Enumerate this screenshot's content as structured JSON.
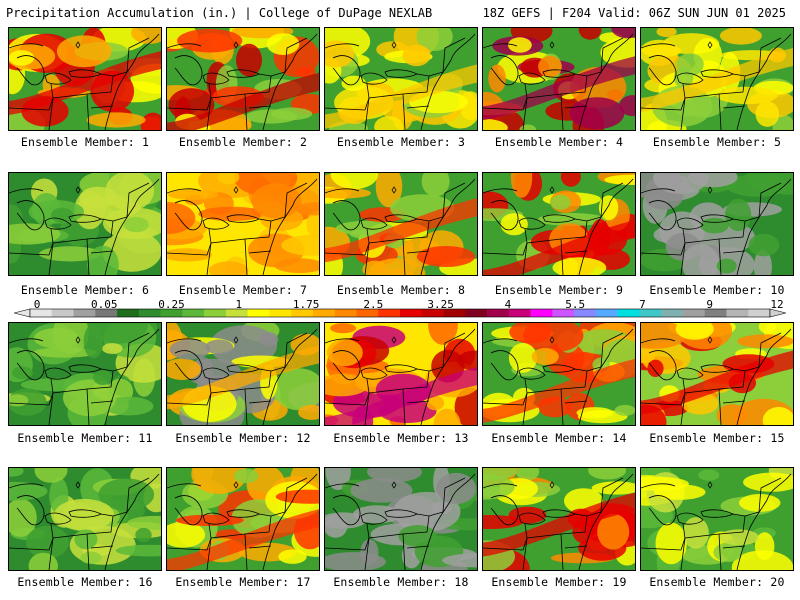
{
  "header": {
    "left_title": "Precipitation Accumulation (in.) | College of DuPage NEXLAB",
    "right_title": "18Z GEFS | F204 Valid: 06Z SUN JUN 01 2025"
  },
  "members": [
    {
      "label": "Ensemble Member: 1",
      "pattern": "south-heavy"
    },
    {
      "label": "Ensemble Member: 2",
      "pattern": "band-heavy"
    },
    {
      "label": "Ensemble Member: 3",
      "pattern": "moderate-band"
    },
    {
      "label": "Ensemble Member: 4",
      "pattern": "sw-heavy"
    },
    {
      "label": "Ensemble Member: 5",
      "pattern": "moderate-band"
    },
    {
      "label": "Ensemble Member: 6",
      "pattern": "light"
    },
    {
      "label": "Ensemble Member: 7",
      "pattern": "widespread"
    },
    {
      "label": "Ensemble Member: 8",
      "pattern": "ne-heavy"
    },
    {
      "label": "Ensemble Member: 9",
      "pattern": "south-band"
    },
    {
      "label": "Ensemble Member: 10",
      "pattern": "dry"
    },
    {
      "label": "Ensemble Member: 11",
      "pattern": "light"
    },
    {
      "label": "Ensemble Member: 12",
      "pattern": "dry-band"
    },
    {
      "label": "Ensemble Member: 13",
      "pattern": "very-heavy"
    },
    {
      "label": "Ensemble Member: 14",
      "pattern": "ne-heavy"
    },
    {
      "label": "Ensemble Member: 15",
      "pattern": "center-heavy"
    },
    {
      "label": "Ensemble Member: 16",
      "pattern": "light"
    },
    {
      "label": "Ensemble Member: 17",
      "pattern": "sw-band"
    },
    {
      "label": "Ensemble Member: 18",
      "pattern": "dry"
    },
    {
      "label": "Ensemble Member: 19",
      "pattern": "south-band"
    },
    {
      "label": "Ensemble Member: 20",
      "pattern": "moderate"
    }
  ],
  "colorbar": {
    "labels": [
      "0",
      "0.05",
      "0.25",
      "1",
      "1.75",
      "2.5",
      "3.25",
      "4",
      "5.5",
      "7",
      "9",
      "12"
    ],
    "colors": [
      "#e6e6e6",
      "#c8c8c8",
      "#a0a0a0",
      "#787878",
      "#1e6e1e",
      "#2e8b2e",
      "#3fa030",
      "#5cb83a",
      "#8ccf3a",
      "#c8e03c",
      "#ffff00",
      "#ffe600",
      "#ffc800",
      "#ffaa00",
      "#ff8800",
      "#ff6600",
      "#ff3300",
      "#e60000",
      "#c80000",
      "#a00000",
      "#800020",
      "#a0004a",
      "#c8007a",
      "#ff00ff",
      "#cc55ff",
      "#8888ff",
      "#55aaff",
      "#00e0e0",
      "#40c8c8",
      "#80b0b0",
      "#a0a0a0",
      "#808080",
      "#b4b4b4",
      "#d0d0d0"
    ]
  }
}
